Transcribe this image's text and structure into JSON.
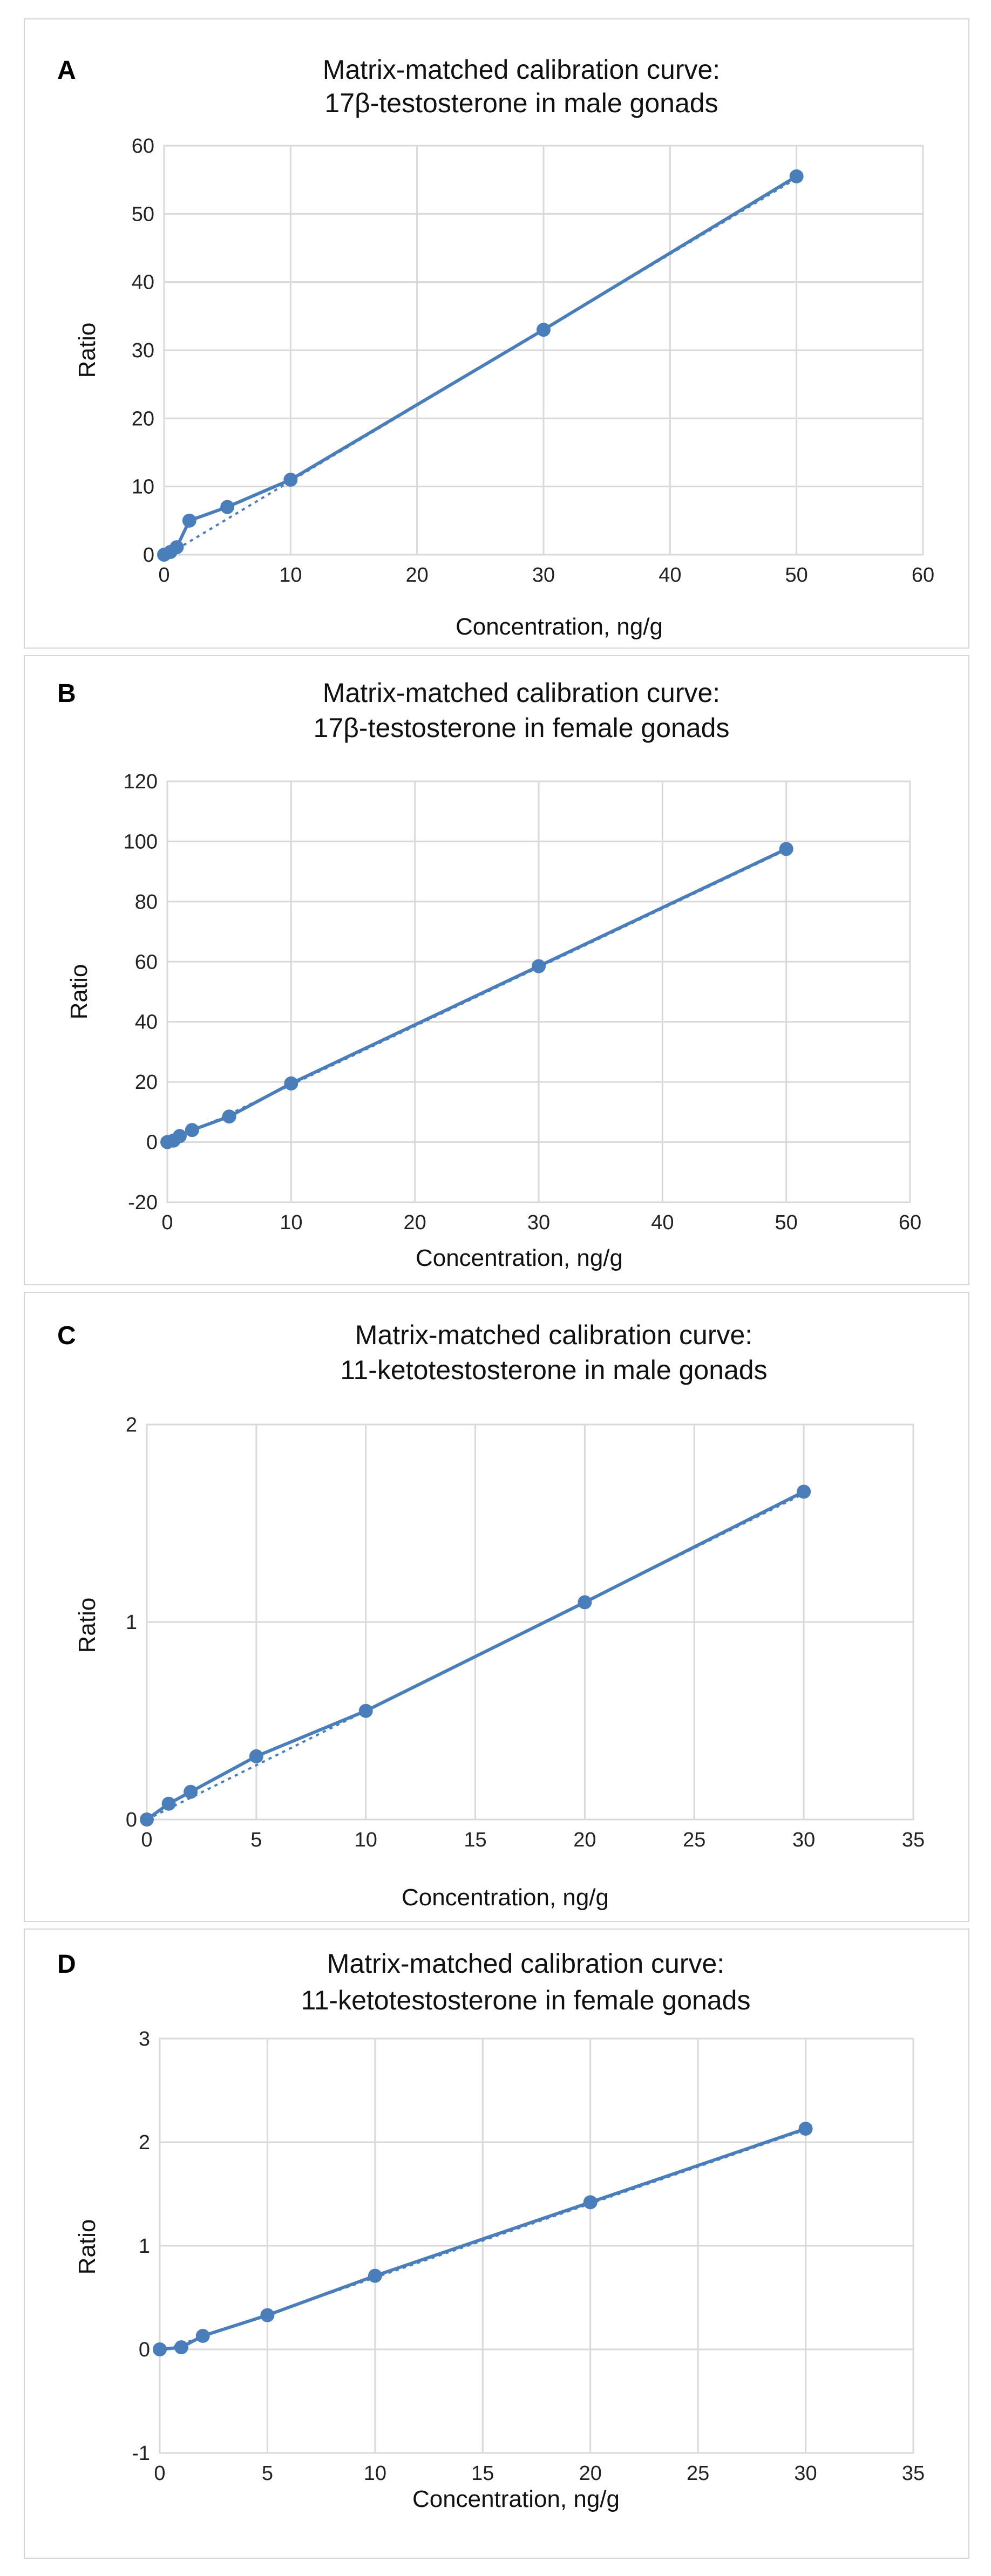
{
  "chart_data": [
    {
      "type": "scatter",
      "panel_label": "A",
      "title_lines": [
        "Matrix-matched calibration curve:",
        "17β-testosterone in male gonads"
      ],
      "xlabel": "Concentration, ng/g",
      "ylabel": "Ratio",
      "xlim": [
        0,
        60
      ],
      "ylim": [
        0,
        60
      ],
      "xticks": [
        0,
        10,
        20,
        30,
        40,
        50,
        60
      ],
      "yticks": [
        0,
        10,
        20,
        30,
        40,
        50,
        60
      ],
      "grid": true,
      "series": [
        {
          "name": "Ratio",
          "x": [
            0,
            0.5,
            1,
            2,
            5,
            10,
            30,
            50
          ],
          "y": [
            0,
            0.4,
            1.1,
            5,
            7,
            11,
            33,
            55.5
          ]
        }
      ],
      "trendline": {
        "style": "dotted",
        "x": [
          0,
          50
        ],
        "y": [
          -0.3,
          55.2
        ]
      },
      "color": "#4a7ebb"
    },
    {
      "type": "scatter",
      "panel_label": "B",
      "title_lines": [
        "Matrix-matched calibration curve:",
        "17β-testosterone in female gonads"
      ],
      "xlabel": "Concentration, ng/g",
      "ylabel": "Ratio",
      "xlim": [
        0,
        60
      ],
      "ylim": [
        -20,
        120
      ],
      "xticks": [
        0,
        10,
        20,
        30,
        40,
        50,
        60
      ],
      "yticks": [
        -20,
        0,
        20,
        40,
        60,
        80,
        100,
        120
      ],
      "grid": true,
      "series": [
        {
          "name": "Ratio",
          "x": [
            0,
            0.5,
            1,
            2,
            5,
            10,
            30,
            50
          ],
          "y": [
            0,
            0.5,
            2,
            4,
            8.5,
            19.5,
            58.5,
            97.5
          ]
        }
      ],
      "trendline": {
        "style": "dotted",
        "x": [
          0,
          50
        ],
        "y": [
          -0.5,
          97.2
        ]
      },
      "color": "#4a7ebb"
    },
    {
      "type": "scatter",
      "panel_label": "C",
      "title_lines": [
        "Matrix-matched calibration curve:",
        "11-ketotestosterone in male gonads"
      ],
      "xlabel": "Concentration, ng/g",
      "ylabel": "Ratio",
      "xlim": [
        0,
        35
      ],
      "ylim": [
        0,
        2
      ],
      "xticks": [
        0,
        5,
        10,
        15,
        20,
        25,
        30,
        35
      ],
      "yticks": [
        0,
        1,
        2
      ],
      "grid": true,
      "series": [
        {
          "name": "Ratio",
          "x": [
            0,
            1,
            2,
            5,
            10,
            20,
            30
          ],
          "y": [
            0,
            0.08,
            0.14,
            0.32,
            0.55,
            1.1,
            1.66
          ]
        }
      ],
      "trendline": {
        "style": "dotted",
        "x": [
          0,
          30
        ],
        "y": [
          0,
          1.65
        ]
      },
      "color": "#4a7ebb"
    },
    {
      "type": "scatter",
      "panel_label": "D",
      "title_lines": [
        "Matrix-matched calibration curve:",
        "11-ketotestosterone in female gonads"
      ],
      "xlabel": "Concentration, ng/g",
      "ylabel": "Ratio",
      "xlim": [
        0,
        35
      ],
      "ylim": [
        -1,
        3
      ],
      "xticks": [
        0,
        5,
        10,
        15,
        20,
        25,
        30,
        35
      ],
      "yticks": [
        -1,
        0,
        1,
        2,
        3
      ],
      "grid": true,
      "series": [
        {
          "name": "Ratio",
          "x": [
            0,
            1,
            2,
            5,
            10,
            20,
            30
          ],
          "y": [
            0,
            0.02,
            0.13,
            0.33,
            0.71,
            1.42,
            2.13
          ]
        }
      ],
      "trendline": {
        "style": "dotted",
        "x": [
          0,
          30
        ],
        "y": [
          -0.02,
          2.12
        ]
      },
      "color": "#4a7ebb"
    }
  ]
}
